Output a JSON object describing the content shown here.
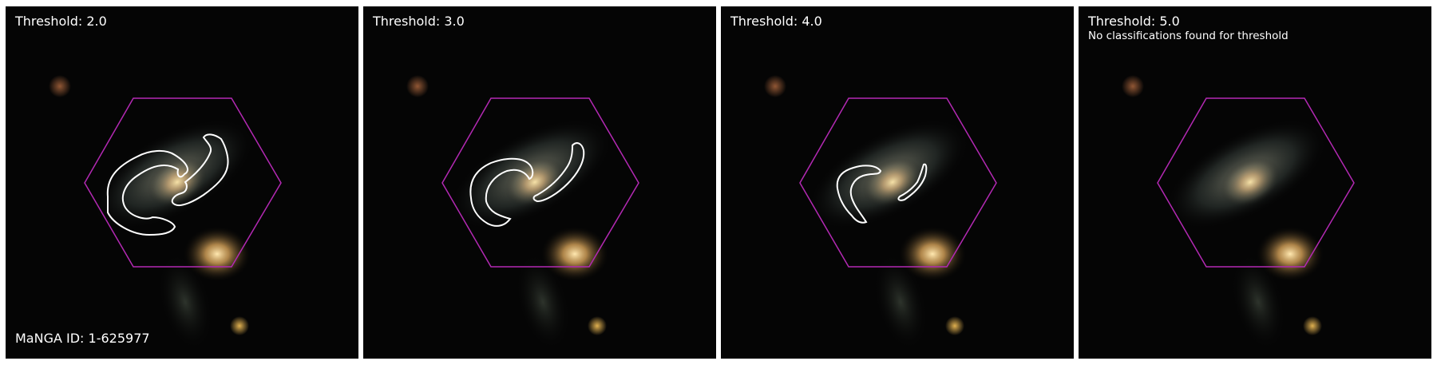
{
  "figure": {
    "manga_id": "MaNGA ID: 1-625977",
    "colors": {
      "hexagon": "#b329b3",
      "contour": "#ffffff",
      "background": "#050505",
      "separator": "#ffffff"
    },
    "panels": [
      {
        "threshold": "Threshold: 2.0",
        "note": "",
        "contour_set": "contour-2"
      },
      {
        "threshold": "Threshold: 3.0",
        "note": "",
        "contour_set": "contour-3"
      },
      {
        "threshold": "Threshold: 4.0",
        "note": "",
        "contour_set": "contour-4"
      },
      {
        "threshold": "Threshold: 5.0",
        "note": "No classifications found for threshold",
        "contour_set": "none"
      }
    ]
  }
}
